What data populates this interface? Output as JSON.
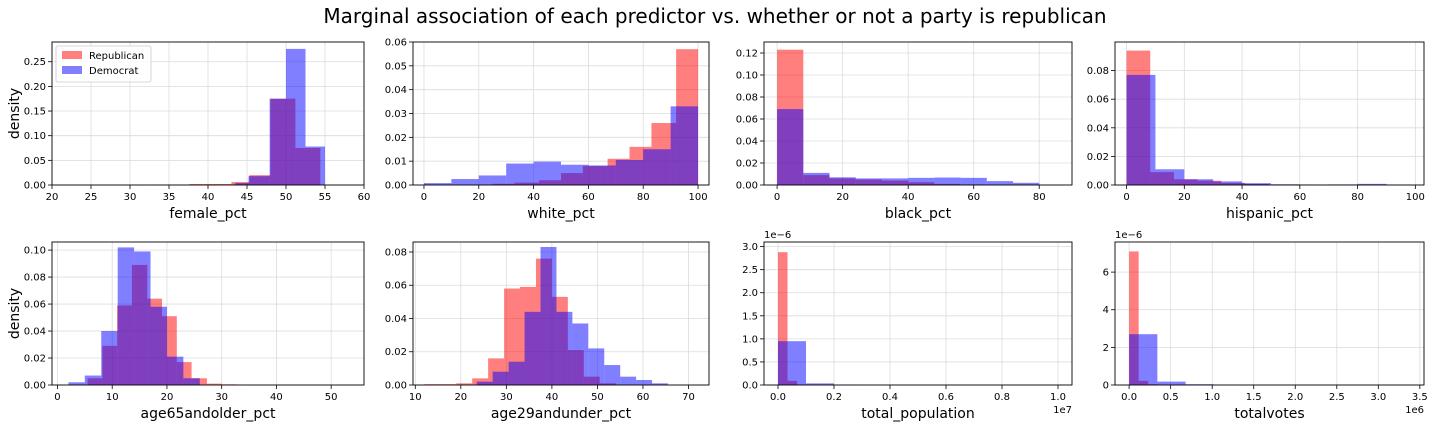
{
  "figure": {
    "title": "Marginal association of each predictor vs. whether or not a party is republican",
    "ylabel": "density"
  },
  "colors": {
    "republican": "#ff0000",
    "democrat": "#0000ff",
    "overlap": "#8033cc"
  },
  "legend": {
    "placement": "upper-left of first panel",
    "entries": [
      "Republican",
      "Democrat"
    ]
  },
  "chart_data": [
    {
      "type": "histogram",
      "xlabel": "female_pct",
      "xlim": [
        20,
        60
      ],
      "ylim": [
        0,
        0.29
      ],
      "xticks": [
        20,
        25,
        30,
        35,
        40,
        45,
        50,
        55,
        60
      ],
      "xtick_labels": [
        "20",
        "25",
        "30",
        "35",
        "40",
        "45",
        "50",
        "55",
        "60"
      ],
      "yticks": [
        0,
        0.05,
        0.1,
        0.15,
        0.2,
        0.25
      ],
      "ytick_labels": [
        "0.00",
        "0.05",
        "0.10",
        "0.15",
        "0.20",
        "0.25"
      ],
      "offset": "",
      "series": [
        {
          "name": "Republican",
          "bins": [
            [
              21.5,
              26.9
            ],
            [
              26.9,
              32.3
            ],
            [
              32.3,
              37.6
            ],
            [
              37.6,
              43.0
            ],
            [
              43.0,
              45.3
            ],
            [
              45.3,
              48.0
            ],
            [
              48.0,
              51.2
            ],
            [
              51.2,
              53.9
            ],
            [
              53.9,
              54.4
            ]
          ],
          "values": [
            0.0005,
            0.0005,
            0.001,
            0.002,
            0.006,
            0.02,
            0.175,
            0.075,
            0.075
          ]
        },
        {
          "name": "Democrat",
          "bins": [
            [
              40.8,
              43.5
            ],
            [
              43.5,
              45.2
            ],
            [
              45.2,
              47.9
            ],
            [
              47.9,
              50.0
            ],
            [
              50.0,
              52.5
            ],
            [
              52.5,
              55.0
            ]
          ],
          "values": [
            0.001,
            0.004,
            0.018,
            0.175,
            0.276,
            0.078
          ]
        }
      ]
    },
    {
      "type": "histogram",
      "xlabel": "white_pct",
      "xlim": [
        -4,
        104
      ],
      "ylim": [
        0,
        0.06
      ],
      "xticks": [
        0,
        20,
        40,
        60,
        80,
        100
      ],
      "xtick_labels": [
        "0",
        "20",
        "40",
        "60",
        "80",
        "100"
      ],
      "yticks": [
        0,
        0.01,
        0.02,
        0.03,
        0.04,
        0.05,
        0.06
      ],
      "ytick_labels": [
        "0.00",
        "0.01",
        "0.02",
        "0.03",
        "0.04",
        "0.05",
        "0.06"
      ],
      "offset": "",
      "series": [
        {
          "name": "Republican",
          "bins": [
            [
              25,
              33
            ],
            [
              33,
              42
            ],
            [
              42,
              50
            ],
            [
              50,
              58
            ],
            [
              58,
              67
            ],
            [
              67,
              75
            ],
            [
              75,
              83
            ],
            [
              83,
              92
            ],
            [
              92,
              100
            ]
          ],
          "values": [
            0.0005,
            0.001,
            0.002,
            0.005,
            0.008,
            0.011,
            0.016,
            0.026,
            0.057
          ]
        },
        {
          "name": "Democrat",
          "bins": [
            [
              0,
              10
            ],
            [
              10,
              20
            ],
            [
              20,
              30
            ],
            [
              30,
              40
            ],
            [
              40,
              50
            ],
            [
              50,
              60
            ],
            [
              60,
              70
            ],
            [
              70,
              80
            ],
            [
              80,
              90
            ],
            [
              90,
              100
            ]
          ],
          "values": [
            0.0008,
            0.0025,
            0.004,
            0.009,
            0.0098,
            0.0085,
            0.0082,
            0.0105,
            0.015,
            0.033
          ]
        }
      ]
    },
    {
      "type": "histogram",
      "xlabel": "black_pct",
      "xlim": [
        -4,
        90
      ],
      "ylim": [
        0,
        0.13
      ],
      "xticks": [
        0,
        20,
        40,
        60,
        80
      ],
      "xtick_labels": [
        "0",
        "20",
        "40",
        "60",
        "80"
      ],
      "yticks": [
        0,
        0.02,
        0.04,
        0.06,
        0.08,
        0.1,
        0.12
      ],
      "ytick_labels": [
        "0.00",
        "0.02",
        "0.04",
        "0.06",
        "0.08",
        "0.10",
        "0.12"
      ],
      "offset": "",
      "series": [
        {
          "name": "Republican",
          "bins": [
            [
              0,
              8
            ],
            [
              8,
              16
            ],
            [
              16,
              24
            ],
            [
              24,
              32
            ],
            [
              32,
              40
            ],
            [
              40,
              48
            ],
            [
              48,
              56
            ],
            [
              56,
              64
            ]
          ],
          "values": [
            0.123,
            0.009,
            0.006,
            0.005,
            0.004,
            0.0025,
            0.001,
            0.0005
          ]
        },
        {
          "name": "Democrat",
          "bins": [
            [
              0,
              8
            ],
            [
              8,
              16
            ],
            [
              16,
              24
            ],
            [
              24,
              32
            ],
            [
              32,
              40
            ],
            [
              40,
              48
            ],
            [
              48,
              56
            ],
            [
              56,
              64
            ],
            [
              64,
              72
            ],
            [
              72,
              80
            ]
          ],
          "values": [
            0.069,
            0.011,
            0.007,
            0.006,
            0.006,
            0.0065,
            0.0068,
            0.0065,
            0.0035,
            0.002
          ]
        }
      ]
    },
    {
      "type": "histogram",
      "xlabel": "hispanic_pct",
      "xlim": [
        -4,
        103
      ],
      "ylim": [
        0,
        0.1
      ],
      "xticks": [
        0,
        20,
        40,
        60,
        80,
        100
      ],
      "xtick_labels": [
        "0",
        "20",
        "40",
        "60",
        "80",
        "100"
      ],
      "yticks": [
        0,
        0.02,
        0.04,
        0.06,
        0.08
      ],
      "ytick_labels": [
        "0.00",
        "0.02",
        "0.04",
        "0.06",
        "0.08"
      ],
      "offset": "",
      "series": [
        {
          "name": "Republican",
          "bins": [
            [
              0,
              8.2
            ],
            [
              8.2,
              16.4
            ],
            [
              16.4,
              24.6
            ],
            [
              24.6,
              32.8
            ],
            [
              32.8,
              41
            ],
            [
              41,
              49.2
            ],
            [
              49.2,
              57.4
            ],
            [
              57.4,
              65.6
            ],
            [
              65.6,
              73.8
            ],
            [
              73.8,
              82
            ]
          ],
          "values": [
            0.094,
            0.009,
            0.004,
            0.003,
            0.0015,
            0.0007,
            0.0003,
            0.0002,
            0.0001,
            0.0001
          ]
        },
        {
          "name": "Democrat",
          "bins": [
            [
              0,
              10
            ],
            [
              10,
              20
            ],
            [
              20,
              30
            ],
            [
              30,
              40
            ],
            [
              40,
              50
            ],
            [
              50,
              60
            ],
            [
              60,
              70
            ],
            [
              70,
              80
            ],
            [
              80,
              90
            ],
            [
              90,
              99
            ]
          ],
          "values": [
            0.077,
            0.011,
            0.004,
            0.0025,
            0.0013,
            0.0005,
            0.0002,
            0.0004,
            0.0008,
            0.0003
          ]
        }
      ]
    },
    {
      "type": "histogram",
      "xlabel": "age65andolder_pct",
      "xlim": [
        -1,
        56
      ],
      "ylim": [
        0,
        0.106
      ],
      "xticks": [
        0,
        10,
        20,
        30,
        40,
        50
      ],
      "xtick_labels": [
        "0",
        "10",
        "20",
        "30",
        "40",
        "50"
      ],
      "yticks": [
        0,
        0.02,
        0.04,
        0.06,
        0.08,
        0.1
      ],
      "ytick_labels": [
        "0.00",
        "0.02",
        "0.04",
        "0.06",
        "0.08",
        "0.10"
      ],
      "offset": "",
      "series": [
        {
          "name": "Republican",
          "bins": [
            [
              5.5,
              8.2
            ],
            [
              8.2,
              10.9
            ],
            [
              10.9,
              13.6
            ],
            [
              13.6,
              16.4
            ],
            [
              16.4,
              19.1
            ],
            [
              19.1,
              21.8
            ],
            [
              21.8,
              24.5
            ],
            [
              24.5,
              27.3
            ],
            [
              27.3,
              30.0
            ],
            [
              30.0,
              32.7
            ],
            [
              32.7,
              35.5
            ]
          ],
          "values": [
            0.005,
            0.029,
            0.059,
            0.089,
            0.064,
            0.051,
            0.017,
            0.005,
            0.001,
            0.0005,
            0.0003
          ]
        },
        {
          "name": "Democrat",
          "bins": [
            [
              2,
              5
            ],
            [
              5,
              8
            ],
            [
              8,
              11
            ],
            [
              11,
              14
            ],
            [
              14,
              17
            ],
            [
              17,
              20
            ],
            [
              20,
              23
            ],
            [
              23,
              26
            ]
          ],
          "values": [
            0.002,
            0.007,
            0.04,
            0.102,
            0.099,
            0.058,
            0.021,
            0.005
          ]
        }
      ]
    },
    {
      "type": "histogram",
      "xlabel": "age29andunder_pct",
      "xlim": [
        9.5,
        74.5
      ],
      "ylim": [
        0,
        0.086
      ],
      "xticks": [
        10,
        20,
        30,
        40,
        50,
        60,
        70
      ],
      "xtick_labels": [
        "10",
        "20",
        "30",
        "40",
        "50",
        "60",
        "70"
      ],
      "yticks": [
        0,
        0.02,
        0.04,
        0.06,
        0.08
      ],
      "ytick_labels": [
        "0.00",
        "0.02",
        "0.04",
        "0.06",
        "0.08"
      ],
      "offset": "",
      "series": [
        {
          "name": "Republican",
          "bins": [
            [
              12,
              15.5
            ],
            [
              15.5,
              19
            ],
            [
              19,
              22.5
            ],
            [
              22.5,
              26
            ],
            [
              26,
              29.5
            ],
            [
              29.5,
              33
            ],
            [
              33,
              36.5
            ],
            [
              36.5,
              40
            ],
            [
              40,
              43.5
            ],
            [
              43.5,
              47
            ],
            [
              47,
              50.5
            ],
            [
              50.5,
              54
            ]
          ],
          "values": [
            0.0005,
            0.0005,
            0.001,
            0.004,
            0.016,
            0.058,
            0.059,
            0.076,
            0.053,
            0.021,
            0.005,
            0.001
          ]
        },
        {
          "name": "Democrat",
          "bins": [
            [
              23.5,
              27
            ],
            [
              27,
              30.5
            ],
            [
              30.5,
              34
            ],
            [
              34,
              37.5
            ],
            [
              37.5,
              41
            ],
            [
              41,
              44.5
            ],
            [
              44.5,
              48
            ],
            [
              48,
              51.5
            ],
            [
              51.5,
              55
            ],
            [
              55,
              58.5
            ],
            [
              58.5,
              62
            ],
            [
              62,
              65.5
            ]
          ],
          "values": [
            0.002,
            0.008,
            0.014,
            0.044,
            0.083,
            0.044,
            0.037,
            0.022,
            0.012,
            0.005,
            0.003,
            0.001
          ]
        }
      ]
    },
    {
      "type": "histogram",
      "xlabel": "total_population",
      "xlim": [
        -0.05,
        1.05
      ],
      "ylim": [
        0,
        3.1
      ],
      "xticks": [
        0,
        0.2,
        0.4,
        0.6,
        0.8,
        1.0
      ],
      "xtick_labels": [
        "0.0",
        "0.2",
        "0.4",
        "0.6",
        "0.8",
        "1.0"
      ],
      "yticks": [
        0,
        0.5,
        1.0,
        1.5,
        2.0,
        2.5,
        3.0
      ],
      "ytick_labels": [
        "0.0",
        "0.5",
        "1.0",
        "1.5",
        "2.0",
        "2.5",
        "3.0"
      ],
      "offset": "1e−6",
      "xoffset": "1e7",
      "series": [
        {
          "name": "Republican",
          "bins": [
            [
              0,
              0.034
            ],
            [
              0.034,
              0.068
            ],
            [
              0.068,
              0.102
            ],
            [
              0.102,
              0.136
            ]
          ],
          "values": [
            2.88,
            0.09,
            0.01,
            0.005
          ]
        },
        {
          "name": "Democrat",
          "bins": [
            [
              0,
              0.1
            ],
            [
              0.1,
              0.2
            ],
            [
              0.2,
              0.3
            ],
            [
              0.3,
              0.4
            ],
            [
              0.4,
              0.5
            ],
            [
              0.5,
              0.6
            ],
            [
              0.6,
              0.7
            ],
            [
              0.7,
              0.8
            ],
            [
              0.8,
              0.9
            ],
            [
              0.9,
              1.0
            ]
          ],
          "values": [
            0.95,
            0.035,
            0.01,
            0.004,
            0.002,
            0.001,
            0.0005,
            0.0005,
            0.0005,
            0.0005
          ]
        }
      ]
    },
    {
      "type": "histogram",
      "xlabel": "totalvotes",
      "xlim": [
        -0.17,
        3.55
      ],
      "ylim": [
        0,
        7.6
      ],
      "xticks": [
        0,
        0.5,
        1.0,
        1.5,
        2.0,
        2.5,
        3.0,
        3.5
      ],
      "xtick_labels": [
        "0.0",
        "0.5",
        "1.0",
        "1.5",
        "2.0",
        "2.5",
        "3.0",
        "3.5"
      ],
      "yticks": [
        0,
        2,
        4,
        6
      ],
      "ytick_labels": [
        "0",
        "2",
        "4",
        "6"
      ],
      "offset": "1e−6",
      "xoffset": "1e6",
      "series": [
        {
          "name": "Republican",
          "bins": [
            [
              0,
              0.115
            ],
            [
              0.115,
              0.23
            ],
            [
              0.23,
              0.345
            ],
            [
              0.345,
              0.46
            ]
          ],
          "values": [
            7.1,
            0.22,
            0.04,
            0.01
          ]
        },
        {
          "name": "Democrat",
          "bins": [
            [
              0,
              0.34
            ],
            [
              0.34,
              0.68
            ],
            [
              0.68,
              1.02
            ],
            [
              1.02,
              1.36
            ],
            [
              1.36,
              1.7
            ],
            [
              1.7,
              2.04
            ],
            [
              2.04,
              2.38
            ],
            [
              2.38,
              2.72
            ],
            [
              2.72,
              3.06
            ],
            [
              3.06,
              3.4
            ]
          ],
          "values": [
            2.7,
            0.18,
            0.04,
            0.01,
            0.005,
            0.003,
            0.002,
            0.001,
            0.001,
            0.001
          ]
        }
      ]
    }
  ]
}
